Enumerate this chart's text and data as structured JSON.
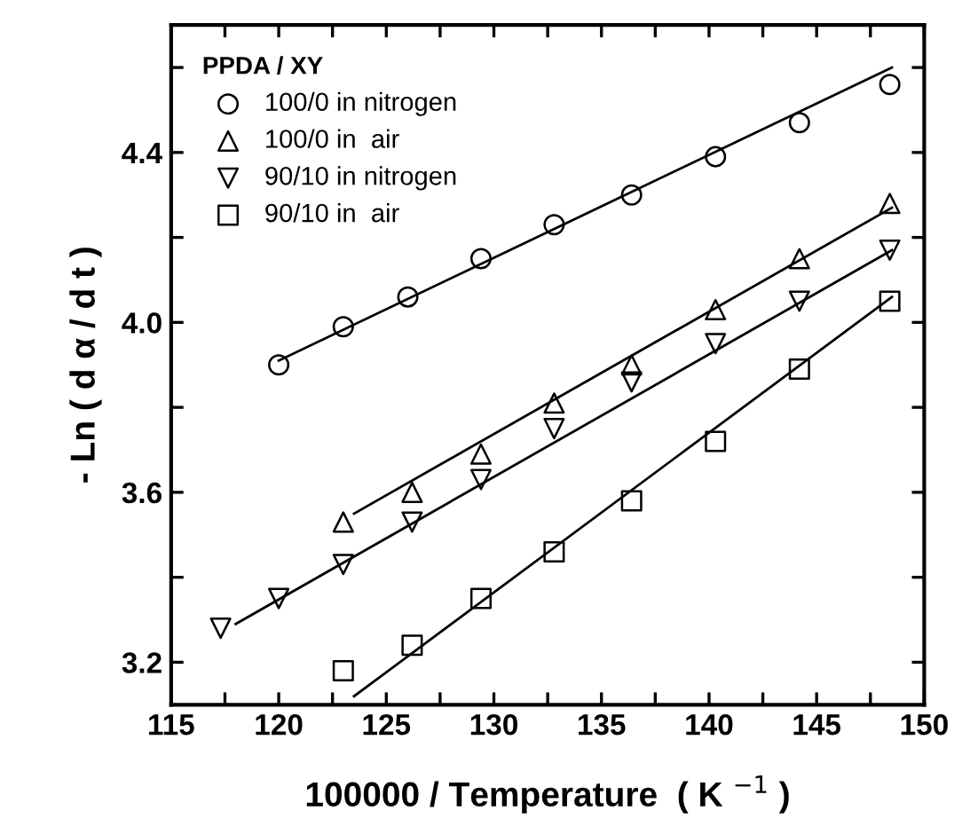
{
  "chart_data": {
    "type": "scatter",
    "xlabel": "100000 / Temperature  ( K $^{−1}$ )",
    "ylabel": "- Ln ( d α / d t )",
    "legend_title": "PPDA / XY",
    "legend": "top left",
    "grid": false,
    "xlim": [
      115,
      150
    ],
    "ylim": [
      3.1,
      4.7
    ],
    "xticks": [
      115,
      {
        "value": 117.5,
        "label": null
      },
      120,
      {
        "value": 122.5,
        "label": null
      },
      125,
      {
        "value": 127.5,
        "label": null
      },
      130,
      {
        "value": 132.5,
        "label": null
      },
      135,
      {
        "value": 137.5,
        "label": null
      },
      140,
      {
        "value": 142.5,
        "label": null
      },
      145,
      {
        "value": 147.5,
        "label": null
      },
      150
    ],
    "yticks": [
      3.2,
      {
        "value": 3.4,
        "label": null
      },
      3.6,
      {
        "value": 3.8,
        "label": null
      },
      {
        "value": 4.0,
        "label": "4.0"
      },
      {
        "value": 4.2,
        "label": null
      },
      4.4,
      {
        "value": 4.6,
        "label": null
      }
    ],
    "series": [
      {
        "name": "100/0 in nitrogen",
        "color": "#000000",
        "marker": "circle",
        "x": [
          120,
          123,
          126,
          129.4,
          132.8,
          136.4,
          140.3,
          144.2,
          148.4
        ],
        "values": [
          3.9,
          3.99,
          4.06,
          4.15,
          4.23,
          4.3,
          4.39,
          4.47,
          4.56
        ]
      },
      {
        "name": "100/0 in  air",
        "color": "#000000",
        "marker": "triangle",
        "x": [
          123,
          126.2,
          129.4,
          132.8,
          136.4,
          140.3,
          144.2,
          148.4
        ],
        "values": [
          3.53,
          3.6,
          3.69,
          3.81,
          3.9,
          4.03,
          4.15,
          4.28
        ]
      },
      {
        "name": "90/10 in nitrogen",
        "color": "#000000",
        "marker": "triangle_down",
        "x": [
          117.3,
          120,
          123,
          126.2,
          129.4,
          132.8,
          136.4,
          140.3,
          144.2,
          148.4
        ],
        "values": [
          3.28,
          3.35,
          3.43,
          3.53,
          3.63,
          3.75,
          3.86,
          3.95,
          4.05,
          4.17
        ]
      },
      {
        "name": "90/10 in  air",
        "color": "#000000",
        "marker": "square",
        "x": [
          123,
          126.2,
          129.4,
          132.8,
          136.4,
          140.3,
          144.2,
          148.4
        ],
        "values": [
          3.18,
          3.24,
          3.35,
          3.46,
          3.58,
          3.72,
          3.89,
          4.05
        ]
      },
      {
        "type": "line",
        "color": "#000000",
        "x": [
          120,
          148.5
        ],
        "values": [
          3.91,
          4.6
        ]
      },
      {
        "type": "line",
        "color": "#000000",
        "x": [
          123.5,
          148.5
        ],
        "values": [
          3.55,
          4.27
        ]
      },
      {
        "type": "line",
        "color": "#000000",
        "x": [
          118,
          148.5
        ],
        "values": [
          3.29,
          4.17
        ]
      },
      {
        "type": "line",
        "color": "#000000",
        "x": [
          123.5,
          148.5
        ],
        "values": [
          3.12,
          4.06
        ]
      }
    ]
  }
}
